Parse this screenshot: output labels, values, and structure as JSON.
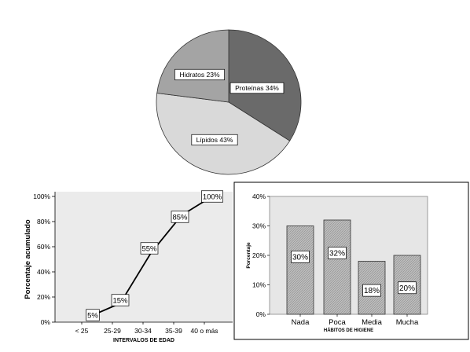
{
  "chart_data": [
    {
      "type": "pie",
      "slices": [
        {
          "label": "Proteínas",
          "value": 34,
          "display": "Proteínas 34%",
          "color": "#6a6a6a"
        },
        {
          "label": "Lípidos",
          "value": 43,
          "display": "Lípidos 43%",
          "color": "#d9d9d9"
        },
        {
          "label": "Hidratos",
          "value": 23,
          "display": "Hidratos 23%",
          "color": "#a4a4a4"
        }
      ]
    },
    {
      "type": "line",
      "categories": [
        "< 25",
        "25-29",
        "30-34",
        "35-39",
        "40 o más"
      ],
      "values": [
        5,
        15,
        55,
        85,
        100
      ],
      "labels": [
        "5%",
        "15%",
        "55%",
        "85%",
        "100%"
      ],
      "xlabel": "INTERVALOS DE EDAD",
      "ylabel": "Porcentaje acumulado",
      "ylim": [
        0,
        100
      ],
      "yticks": [
        "0%",
        "20%",
        "40%",
        "60%",
        "80%",
        "100%"
      ],
      "background": "#ebebeb",
      "line_color": "#000000"
    },
    {
      "type": "bar",
      "categories": [
        "Nada",
        "Poca",
        "Media",
        "Mucha"
      ],
      "values": [
        30,
        32,
        18,
        20
      ],
      "labels": [
        "30%",
        "32%",
        "18%",
        "20%"
      ],
      "xlabel": "HÁBITOS DE HIGIENE",
      "ylabel": "Porcentaje",
      "ylim": [
        0,
        40
      ],
      "yticks": [
        "0%",
        "10%",
        "20%",
        "30%",
        "40%"
      ],
      "background": "#e6e6e6",
      "bar_color": "#b3b3b3"
    }
  ]
}
